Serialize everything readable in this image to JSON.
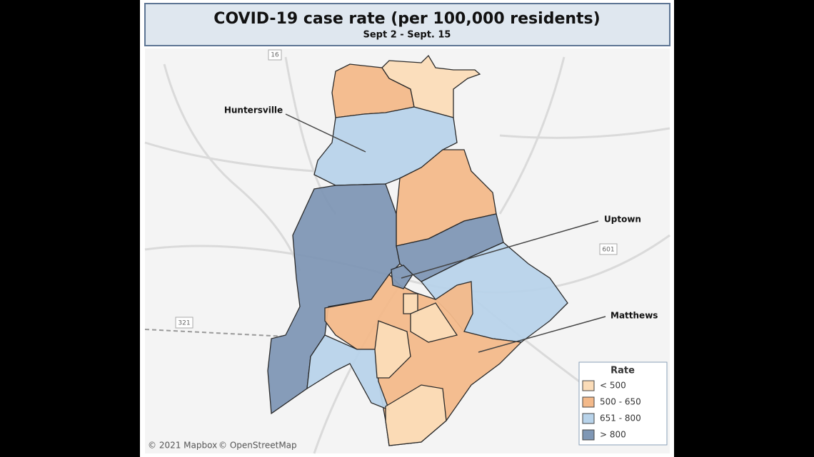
{
  "header": {
    "title": "COVID-19 case rate (per 100,000 residents)",
    "subtitle": "Sept 2 - Sept. 15"
  },
  "labels": [
    "Huntersville",
    "Uptown",
    "Matthews"
  ],
  "roads": [
    "16",
    "601",
    "321"
  ],
  "legend": {
    "title": "Rate",
    "items": [
      {
        "label": "< 500",
        "color": "#fbdcb8"
      },
      {
        "label": "500 - 650",
        "color": "#f3b98a"
      },
      {
        "label": "651 - 800",
        "color": "#b8d3ea"
      },
      {
        "label": "> 800",
        "color": "#7f97b5"
      }
    ]
  },
  "attribution": [
    "© 2021 Mapbox",
    "© OpenStreetMap"
  ]
}
